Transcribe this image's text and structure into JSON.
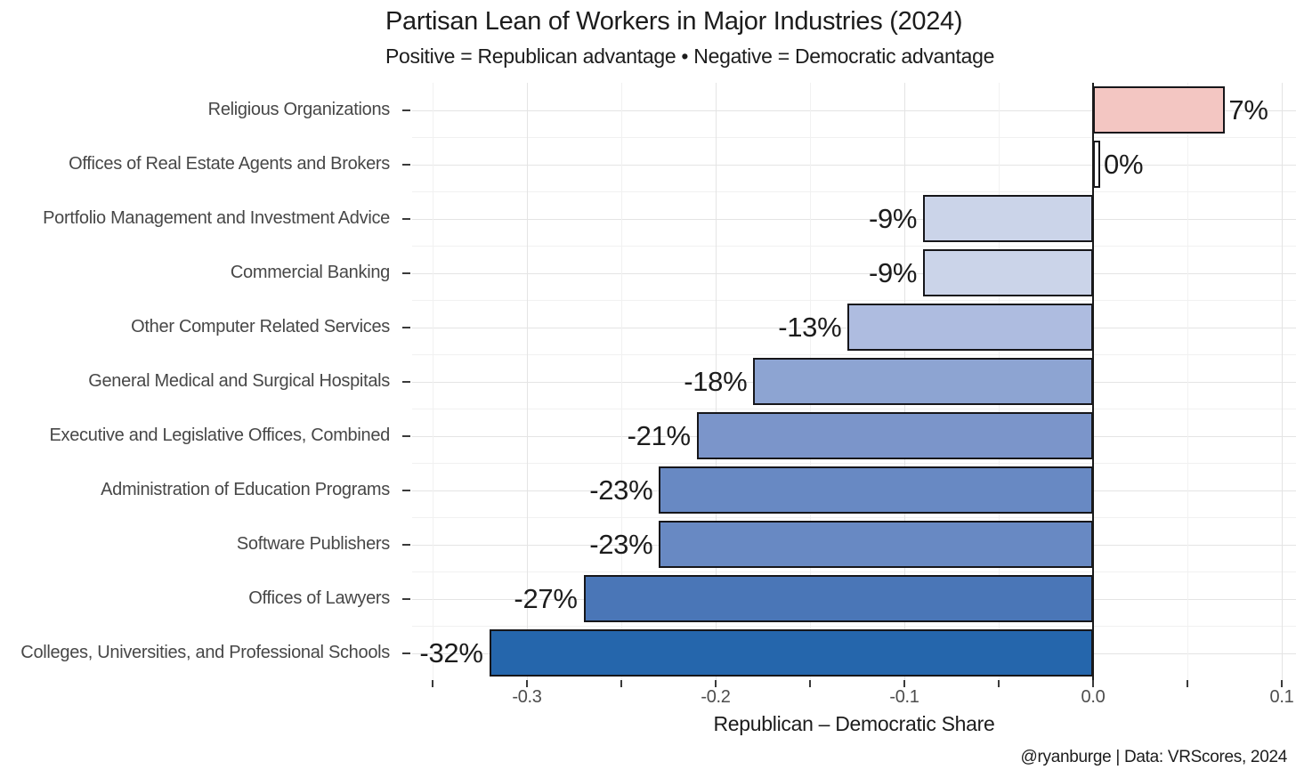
{
  "header": {
    "title": "Partisan Lean of Workers in Major Industries (2024)",
    "subtitle": "Positive = Republican advantage • Negative = Democratic advantage"
  },
  "chart_data": {
    "type": "bar",
    "orientation": "horizontal",
    "title": "Partisan Lean of Workers in Major Industries (2024)",
    "subtitle": "Positive = Republican advantage • Negative = Democratic advantage",
    "categories": [
      "Religious Organizations",
      "Offices of Real Estate Agents and Brokers",
      "Portfolio Management and Investment Advice",
      "Commercial Banking",
      "Other Computer Related Services",
      "General Medical and Surgical Hospitals",
      "Executive and Legislative Offices, Combined",
      "Administration of Education Programs",
      "Software Publishers",
      "Offices of Lawyers",
      "Colleges, Universities, and Professional Schools"
    ],
    "values": [
      0.07,
      0.0,
      -0.09,
      -0.09,
      -0.13,
      -0.18,
      -0.21,
      -0.23,
      -0.23,
      -0.27,
      -0.32
    ],
    "value_labels": [
      "7%",
      "0%",
      "-9%",
      "-9%",
      "-13%",
      "-18%",
      "-21%",
      "-23%",
      "-23%",
      "-27%",
      "-32%"
    ],
    "bar_colors": [
      "#f3c6c2",
      "#ffffff",
      "#cbd4e9",
      "#cbd4e9",
      "#aebce0",
      "#8da4d2",
      "#7b95ca",
      "#6889c3",
      "#6889c3",
      "#4a76b7",
      "#2566ac"
    ],
    "bar_border_color": "#16161a",
    "zero_line_color": "#1a1a1a",
    "xlabel": "Republican – Democratic Share",
    "x_ticks": [
      -0.3,
      -0.2,
      -0.1,
      0.0,
      0.1
    ],
    "x_tick_labels": [
      "-0.3",
      "-0.2",
      "-0.1",
      "0.0",
      "0.1"
    ],
    "x_minor_ticks": [
      -0.35,
      -0.25,
      -0.15,
      -0.05,
      0.05
    ],
    "xlim": [
      -0.361,
      0.1075
    ],
    "grid": "on",
    "legend": "none"
  },
  "footer": {
    "caption": "@ryanburge | Data: VRScores, 2024"
  }
}
